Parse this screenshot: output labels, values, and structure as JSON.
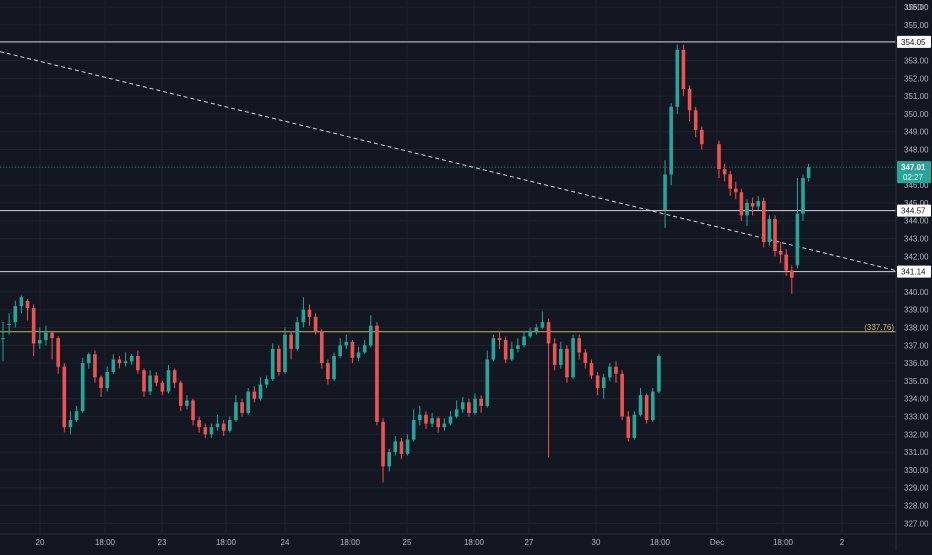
{
  "currency": "USD",
  "colors": {
    "background": "#131722",
    "grid": "#1f2330",
    "axis_text": "#b2b5be",
    "up": "#26a69a",
    "down": "#ef5350",
    "level_line": "#d1d4dc",
    "yellow_level": "#c9b458"
  },
  "chart_data": {
    "type": "candlestick",
    "title": "",
    "xlabel": "",
    "ylabel": "",
    "ylim": [
      326.4,
      356.4
    ],
    "y_ticks": [
      "327.00",
      "328.00",
      "329.00",
      "330.00",
      "331.00",
      "332.00",
      "333.00",
      "334.00",
      "335.00",
      "336.00",
      "337.00",
      "338.00",
      "339.00",
      "340.00",
      "341.00",
      "342.00",
      "343.00",
      "344.00",
      "345.00",
      "346.00",
      "347.00",
      "348.00",
      "349.00",
      "350.00",
      "351.00",
      "352.00",
      "353.00",
      "354.00",
      "355.00",
      "356.00"
    ],
    "x_ticks": [
      "20",
      "18:00",
      "23",
      "18:00",
      "24",
      "18:00",
      "25",
      "18:00",
      "27",
      "30",
      "18:00",
      "Dec",
      "18:00",
      "2"
    ],
    "candles": [
      [
        337.4,
        337.4,
        338.3,
        336.1
      ],
      [
        338.2,
        338.2,
        338.8,
        337.6
      ],
      [
        338.3,
        339.2,
        339.5,
        338.0
      ],
      [
        339.2,
        339.7,
        339.8,
        338.8
      ],
      [
        339.5,
        339.1,
        339.6,
        338.4
      ],
      [
        339.1,
        337.1,
        339.3,
        336.4
      ],
      [
        337.1,
        337.3,
        338.0,
        336.8
      ],
      [
        337.3,
        337.7,
        338.1,
        337.0
      ],
      [
        337.7,
        337.4,
        337.8,
        336.2
      ],
      [
        337.4,
        335.8,
        337.5,
        335.4
      ],
      [
        335.8,
        332.4,
        336.0,
        332.1
      ],
      [
        332.4,
        332.8,
        333.3,
        332.0
      ],
      [
        332.8,
        333.3,
        333.6,
        332.7
      ],
      [
        333.3,
        336.0,
        336.3,
        333.2
      ],
      [
        336.0,
        336.5,
        336.6,
        335.7
      ],
      [
        336.5,
        335.2,
        336.7,
        334.9
      ],
      [
        335.2,
        334.6,
        335.3,
        334.1
      ],
      [
        334.6,
        335.5,
        335.8,
        334.4
      ],
      [
        335.5,
        336.2,
        336.5,
        335.4
      ],
      [
        336.2,
        336.0,
        336.4,
        335.7
      ],
      [
        336.0,
        336.1,
        336.6,
        335.8
      ],
      [
        336.1,
        336.4,
        336.5,
        335.9
      ],
      [
        336.4,
        335.6,
        336.7,
        335.4
      ],
      [
        335.6,
        334.4,
        335.7,
        334.1
      ],
      [
        334.4,
        335.3,
        335.6,
        334.2
      ],
      [
        335.3,
        334.9,
        335.5,
        334.7
      ],
      [
        334.9,
        334.4,
        335.0,
        334.2
      ],
      [
        334.4,
        335.6,
        335.9,
        334.3
      ],
      [
        335.6,
        334.9,
        335.7,
        334.6
      ],
      [
        334.9,
        333.6,
        335.0,
        333.3
      ],
      [
        333.6,
        333.9,
        334.2,
        333.4
      ],
      [
        333.9,
        332.8,
        334.0,
        332.5
      ],
      [
        332.8,
        332.4,
        333.0,
        332.1
      ],
      [
        332.4,
        332.0,
        332.6,
        331.8
      ],
      [
        332.0,
        332.4,
        332.6,
        331.8
      ],
      [
        332.4,
        332.6,
        333.1,
        332.2
      ],
      [
        332.6,
        332.2,
        332.8,
        331.9
      ],
      [
        332.2,
        332.8,
        333.0,
        332.1
      ],
      [
        332.8,
        333.8,
        334.2,
        332.7
      ],
      [
        333.8,
        333.2,
        334.0,
        333.0
      ],
      [
        333.2,
        334.4,
        334.6,
        333.1
      ],
      [
        334.4,
        334.0,
        334.7,
        333.8
      ],
      [
        334.0,
        334.8,
        335.2,
        333.9
      ],
      [
        334.8,
        335.1,
        335.3,
        334.6
      ],
      [
        335.1,
        336.8,
        337.1,
        335.0
      ],
      [
        336.8,
        335.5,
        337.0,
        335.3
      ],
      [
        335.5,
        337.6,
        338.0,
        335.4
      ],
      [
        337.6,
        336.8,
        337.8,
        336.2
      ],
      [
        336.8,
        338.3,
        338.6,
        336.7
      ],
      [
        338.3,
        339.0,
        339.7,
        338.0
      ],
      [
        339.0,
        338.6,
        339.3,
        338.1
      ],
      [
        338.6,
        337.8,
        338.8,
        337.6
      ],
      [
        337.8,
        336.0,
        337.9,
        335.7
      ],
      [
        336.0,
        335.1,
        336.2,
        334.8
      ],
      [
        335.1,
        336.4,
        336.6,
        335.0
      ],
      [
        336.4,
        337.0,
        337.4,
        336.3
      ],
      [
        337.0,
        337.2,
        337.6,
        336.8
      ],
      [
        337.2,
        336.3,
        337.3,
        336.0
      ],
      [
        336.3,
        336.6,
        336.9,
        336.1
      ],
      [
        336.6,
        337.0,
        337.3,
        336.5
      ],
      [
        337.0,
        338.1,
        338.7,
        336.9
      ],
      [
        338.1,
        332.7,
        338.3,
        332.5
      ],
      [
        332.7,
        330.2,
        332.9,
        329.3
      ],
      [
        330.2,
        331.0,
        331.2,
        329.9
      ],
      [
        331.0,
        331.6,
        331.9,
        330.8
      ],
      [
        331.6,
        330.9,
        331.8,
        330.6
      ],
      [
        330.9,
        331.7,
        332.0,
        330.8
      ],
      [
        331.7,
        332.8,
        333.4,
        331.6
      ],
      [
        332.8,
        333.1,
        333.6,
        332.5
      ],
      [
        333.1,
        332.6,
        333.3,
        332.3
      ],
      [
        332.6,
        332.9,
        333.2,
        332.4
      ],
      [
        332.9,
        332.4,
        333.0,
        332.1
      ],
      [
        332.4,
        332.6,
        332.9,
        332.2
      ],
      [
        332.6,
        333.0,
        333.3,
        332.5
      ],
      [
        333.0,
        333.4,
        333.9,
        332.9
      ],
      [
        333.4,
        333.8,
        334.1,
        333.2
      ],
      [
        333.8,
        333.2,
        334.0,
        333.0
      ],
      [
        333.2,
        334.0,
        334.3,
        333.1
      ],
      [
        334.0,
        333.6,
        334.2,
        333.2
      ],
      [
        333.6,
        336.2,
        336.7,
        333.5
      ],
      [
        336.2,
        337.4,
        337.6,
        336.1
      ],
      [
        337.4,
        337.3,
        337.8,
        336.8
      ],
      [
        337.3,
        336.2,
        337.5,
        336.0
      ],
      [
        336.2,
        336.8,
        337.2,
        336.1
      ],
      [
        336.8,
        337.0,
        337.4,
        336.6
      ],
      [
        337.0,
        337.5,
        337.8,
        336.9
      ],
      [
        337.5,
        337.8,
        338.0,
        337.4
      ],
      [
        337.8,
        338.0,
        338.2,
        337.6
      ],
      [
        338.0,
        338.3,
        338.9,
        337.9
      ],
      [
        338.3,
        337.1,
        338.5,
        330.7
      ],
      [
        337.1,
        335.9,
        337.4,
        335.6
      ],
      [
        335.9,
        336.8,
        337.2,
        335.7
      ],
      [
        336.8,
        335.2,
        337.0,
        334.9
      ],
      [
        335.2,
        337.4,
        337.6,
        335.1
      ],
      [
        337.4,
        336.6,
        337.6,
        336.2
      ],
      [
        336.6,
        336.0,
        336.8,
        335.7
      ],
      [
        336.0,
        335.3,
        336.2,
        335.1
      ],
      [
        335.3,
        334.6,
        335.5,
        334.2
      ],
      [
        334.6,
        335.2,
        335.4,
        334.0
      ],
      [
        335.2,
        335.8,
        336.0,
        335.0
      ],
      [
        335.8,
        335.4,
        336.1,
        334.9
      ],
      [
        335.4,
        333.0,
        335.6,
        332.8
      ],
      [
        333.0,
        331.8,
        333.3,
        331.6
      ],
      [
        331.8,
        333.1,
        333.3,
        331.7
      ],
      [
        333.1,
        334.2,
        334.6,
        333.0
      ],
      [
        334.2,
        332.8,
        334.3,
        332.6
      ],
      [
        332.8,
        334.4,
        334.6,
        332.7
      ],
      [
        334.4,
        336.4,
        336.5,
        334.3
      ],
      [
        344.6,
        346.6,
        347.4,
        343.6
      ],
      [
        346.6,
        350.4,
        350.6,
        346.0
      ],
      [
        350.4,
        353.6,
        353.9,
        350.0
      ],
      [
        353.6,
        351.4,
        353.9,
        351.0
      ],
      [
        351.4,
        350.2,
        351.6,
        349.6
      ],
      [
        350.2,
        349.1,
        350.4,
        348.7
      ],
      [
        349.1,
        348.3,
        349.3,
        348.0
      ],
      [
        348.3,
        346.9,
        348.5,
        346.4
      ],
      [
        346.9,
        346.6,
        347.2,
        346.2
      ],
      [
        346.6,
        345.8,
        346.8,
        345.4
      ],
      [
        345.8,
        345.6,
        346.2,
        345.2
      ],
      [
        345.6,
        344.3,
        345.8,
        344.0
      ],
      [
        344.3,
        345.0,
        345.2,
        343.7
      ],
      [
        345.0,
        344.8,
        345.3,
        344.3
      ],
      [
        344.8,
        345.1,
        345.4,
        344.6
      ],
      [
        345.1,
        342.8,
        345.3,
        342.5
      ],
      [
        342.8,
        344.1,
        344.3,
        342.6
      ],
      [
        344.1,
        342.3,
        344.3,
        342.0
      ],
      [
        342.3,
        342.1,
        342.8,
        341.6
      ],
      [
        342.1,
        341.2,
        342.4,
        340.9
      ],
      [
        341.2,
        340.8,
        341.5,
        339.9
      ],
      [
        341.5,
        344.4,
        346.4,
        341.3
      ],
      [
        344.4,
        346.4,
        346.6,
        344.0
      ],
      [
        346.4,
        347.0,
        347.2,
        346.2
      ]
    ],
    "levels": [
      {
        "value": 354.05,
        "label": "354.05",
        "color": "#d1d4dc"
      },
      {
        "value": 344.57,
        "label": "344.57",
        "color": "#d1d4dc"
      },
      {
        "value": 341.14,
        "label": "341.14",
        "color": "#d1d4dc"
      }
    ],
    "yellow_level": {
      "value": 337.76,
      "label": "(337.76)"
    },
    "last_price": {
      "value": 347.01,
      "label": "347.01",
      "countdown": "02:27"
    },
    "trendline": {
      "start": {
        "bar": 0,
        "price": 353.5
      },
      "end": {
        "bar": 152,
        "price": 341.2
      }
    },
    "grid": true
  }
}
